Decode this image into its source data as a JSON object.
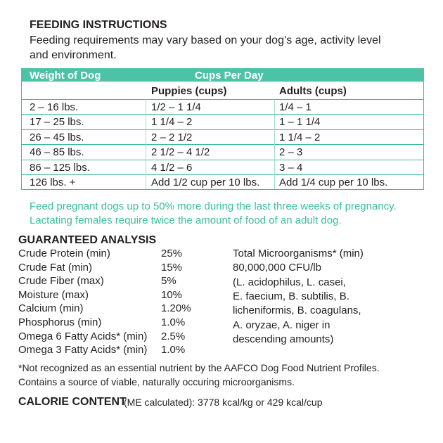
{
  "feeding": {
    "title": "FEEDING INSTRUCTIONS",
    "intro": [
      "Feeding requirements may vary based on your dog’s age, activity level",
      "and environment."
    ]
  },
  "table": {
    "header": [
      "Weight of Dog",
      "Cups Per Day"
    ],
    "subheader": [
      "Puppies (cups)",
      "Adults (cups)"
    ],
    "rows": [
      [
        "2 – 16 lbs.",
        "1/2 – 1 1/4",
        "1/4 – 1"
      ],
      [
        "17 – 25 lbs.",
        "1 1/4 – 2",
        "1 – 1 1/4"
      ],
      [
        "26 – 45 lbs.",
        "2 – 2 1/2",
        "1 1/4 – 2"
      ],
      [
        "46 – 85 lbs.",
        "2 1/2 – 4 1/2",
        "2 – 3"
      ],
      [
        "86 – 125 lbs.",
        "4 1/2 – 6",
        "3 – 4"
      ],
      [
        "126 lbs. +",
        "Add 1/2 cup per 10 lbs.",
        "Add 1/4 cup per 10 lbs."
      ]
    ]
  },
  "note": [
    "Feed pregnant dogs up to 50% more during the last three weeks of pregnancy.",
    "Lactating females require twice the amount of food of an adult dog."
  ],
  "analysis": {
    "title": "GUARANTEED ANALYSIS",
    "items": [
      [
        "Crude Protein (min)",
        "25%"
      ],
      [
        "Crude Fat (min)",
        "15%"
      ],
      [
        "Crude Fiber (max)",
        "5%"
      ],
      [
        "Moisture (max)",
        "10%"
      ],
      [
        "Calcium (min)",
        "1.20%"
      ],
      [
        "Phosphorus (min)",
        "1.0%"
      ],
      [
        "Omega 6 Fatty Acids* (min)",
        "2.5%"
      ],
      [
        "Omega 3 Fatty Acids* (min)",
        "1.0%"
      ]
    ],
    "microorganisms": [
      "Total Microorganisms* (min)",
      "80,000,000 CFU/lb",
      "(L. acidophilus, L. casei,",
      "E. faecium, B. subtilis, B.",
      "licheniformis, B. coagulans,",
      "A. oryzae, A. niger in",
      "descending amounts)"
    ]
  },
  "footnote": [
    "*Not recognized as an essential nutrient by the AAFCO Dog Food Nutrient Profiles.",
    "Contains a source of viable, naturally occuring microorganisms."
  ],
  "calorie": {
    "label": "CALORIE CONTENT",
    "text": "(ME calculated): 3778 kcal/kg or 429 kcal/cup"
  }
}
